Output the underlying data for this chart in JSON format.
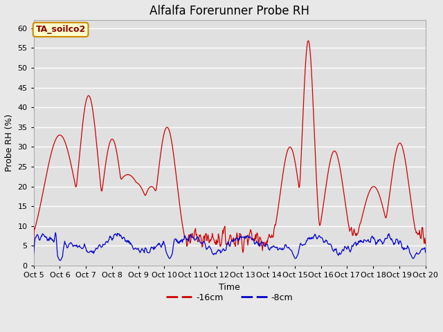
{
  "title": "Alfalfa Forerunner Probe RH",
  "xlabel": "Time",
  "ylabel": "Probe RH (%)",
  "annotation": "TA_soilco2",
  "ylim": [
    0,
    62
  ],
  "yticks": [
    0,
    5,
    10,
    15,
    20,
    25,
    30,
    35,
    40,
    45,
    50,
    55,
    60
  ],
  "xtick_labels": [
    "Oct 5",
    "Oct 6",
    "Oct 7",
    "Oct 8",
    "Oct 9",
    "Oct 10",
    "Oct 11",
    "Oct 12",
    "Oct 13",
    "Oct 14",
    "Oct 15",
    "Oct 16",
    "Oct 17",
    "Oct 18",
    "Oct 19",
    "Oct 20"
  ],
  "legend_labels": [
    "-16cm",
    "-8cm"
  ],
  "red_line_color": "#cc0000",
  "blue_line_color": "#0000cc",
  "background_color": "#e8e8e8",
  "plot_bg_color": "#e0e0e0",
  "grid_color": "#ffffff",
  "title_fontsize": 12,
  "axis_label_fontsize": 9,
  "tick_fontsize": 8,
  "n_points": 720
}
